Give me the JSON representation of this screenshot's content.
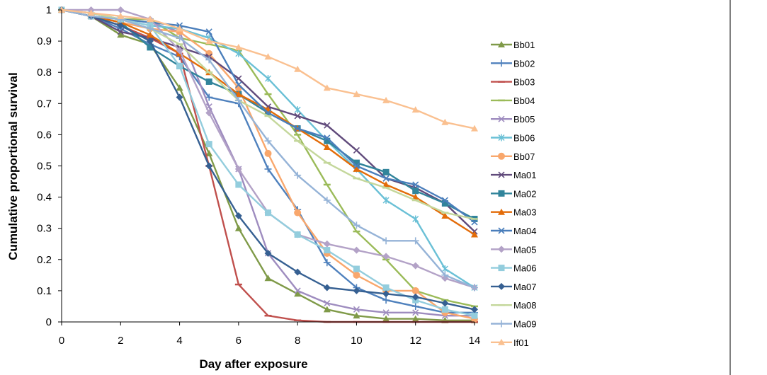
{
  "chart_data": {
    "type": "line",
    "title": "",
    "xlabel": "Day after exposure",
    "ylabel": "Cumulative proportional survival",
    "xlim": [
      0,
      14
    ],
    "ylim": [
      0,
      1
    ],
    "grid": false,
    "legend_position": "right",
    "x_ticks": [
      "0",
      "2",
      "4",
      "6",
      "8",
      "10",
      "12",
      "14"
    ],
    "y_ticks": [
      "0",
      "0.1",
      "0.2",
      "0.3",
      "0.4",
      "0.5",
      "0.6",
      "0.7",
      "0.8",
      "0.9",
      "1"
    ],
    "x": [
      0,
      1,
      2,
      3,
      4,
      5,
      6,
      7,
      8,
      9,
      10,
      11,
      12,
      13,
      14
    ],
    "series": [
      {
        "name": "Bb01",
        "color": "#7f9a48",
        "marker": "triangle",
        "values": [
          1,
          0.98,
          0.92,
          0.89,
          0.75,
          0.54,
          0.3,
          0.14,
          0.09,
          0.04,
          0.02,
          0.01,
          0.01,
          0.005,
          0.005
        ]
      },
      {
        "name": "Bb02",
        "color": "#4f81bd",
        "marker": "plus",
        "values": [
          1,
          0.98,
          0.94,
          0.89,
          0.85,
          0.72,
          0.7,
          0.49,
          0.36,
          0.19,
          0.11,
          0.07,
          0.05,
          0.03,
          0.03
        ]
      },
      {
        "name": "Bb03",
        "color": "#c0504d",
        "marker": "dash",
        "values": [
          1,
          0.98,
          0.95,
          0.91,
          0.86,
          0.5,
          0.12,
          0.02,
          0.005,
          0,
          0,
          0,
          0,
          0,
          0
        ]
      },
      {
        "name": "Bb04",
        "color": "#9bbb59",
        "marker": "dash",
        "values": [
          1,
          0.98,
          0.97,
          0.97,
          0.91,
          0.89,
          0.87,
          0.73,
          0.6,
          0.44,
          0.29,
          0.2,
          0.1,
          0.07,
          0.05
        ]
      },
      {
        "name": "Bb05",
        "color": "#9e8cbf",
        "marker": "x",
        "values": [
          1,
          0.99,
          0.97,
          0.96,
          0.93,
          0.69,
          0.49,
          0.22,
          0.1,
          0.06,
          0.04,
          0.03,
          0.03,
          0.02,
          0.02
        ]
      },
      {
        "name": "Bb06",
        "color": "#6ac0d6",
        "marker": "star",
        "values": [
          1,
          0.99,
          0.97,
          0.95,
          0.94,
          0.91,
          0.86,
          0.78,
          0.68,
          0.58,
          0.49,
          0.39,
          0.33,
          0.17,
          0.11
        ]
      },
      {
        "name": "Bb07",
        "color": "#f9a76c",
        "marker": "circle",
        "values": [
          1,
          0.98,
          0.96,
          0.94,
          0.93,
          0.86,
          0.75,
          0.54,
          0.35,
          0.22,
          0.15,
          0.1,
          0.1,
          0.03,
          0.01
        ]
      },
      {
        "name": "Ma01",
        "color": "#604a7b",
        "marker": "x",
        "values": [
          1,
          0.98,
          0.93,
          0.91,
          0.88,
          0.85,
          0.78,
          0.69,
          0.66,
          0.63,
          0.55,
          0.46,
          0.43,
          0.38,
          0.29
        ]
      },
      {
        "name": "Ma02",
        "color": "#31849b",
        "marker": "square",
        "values": [
          1,
          0.98,
          0.96,
          0.88,
          0.82,
          0.77,
          0.73,
          0.67,
          0.62,
          0.58,
          0.51,
          0.48,
          0.42,
          0.38,
          0.33
        ]
      },
      {
        "name": "Ma03",
        "color": "#e36c09",
        "marker": "triangle",
        "values": [
          1,
          0.98,
          0.96,
          0.92,
          0.86,
          0.8,
          0.73,
          0.68,
          0.62,
          0.56,
          0.49,
          0.44,
          0.4,
          0.34,
          0.28
        ]
      },
      {
        "name": "Ma04",
        "color": "#4a7ebb",
        "marker": "x",
        "values": [
          1,
          0.98,
          0.97,
          0.96,
          0.95,
          0.93,
          0.76,
          0.67,
          0.62,
          0.59,
          0.5,
          0.46,
          0.44,
          0.39,
          0.32
        ]
      },
      {
        "name": "Ma05",
        "color": "#b3a2c7",
        "marker": "diamond",
        "values": [
          1,
          1,
          1,
          0.97,
          0.87,
          0.67,
          0.49,
          0.35,
          0.28,
          0.25,
          0.23,
          0.21,
          0.18,
          0.14,
          0.11
        ]
      },
      {
        "name": "Ma06",
        "color": "#93cddd",
        "marker": "square",
        "values": [
          1,
          0.98,
          0.97,
          0.95,
          0.82,
          0.57,
          0.44,
          0.35,
          0.28,
          0.23,
          0.17,
          0.11,
          0.07,
          0.04,
          0.02
        ]
      },
      {
        "name": "Ma07",
        "color": "#366092",
        "marker": "diamond",
        "values": [
          1,
          0.98,
          0.95,
          0.9,
          0.72,
          0.5,
          0.34,
          0.22,
          0.16,
          0.11,
          0.1,
          0.09,
          0.08,
          0.06,
          0.04
        ]
      },
      {
        "name": "Ma08",
        "color": "#c4d79b",
        "marker": "dash",
        "values": [
          1,
          0.99,
          0.97,
          0.94,
          0.89,
          0.8,
          0.71,
          0.66,
          0.58,
          0.51,
          0.46,
          0.43,
          0.39,
          0.35,
          0.33
        ]
      },
      {
        "name": "Ma09",
        "color": "#95b3d7",
        "marker": "plus",
        "values": [
          1,
          0.98,
          0.97,
          0.94,
          0.91,
          0.84,
          0.71,
          0.58,
          0.47,
          0.39,
          0.31,
          0.26,
          0.26,
          0.15,
          0.11
        ]
      },
      {
        "name": "If01",
        "color": "#fac090",
        "marker": "triangle",
        "values": [
          1,
          0.99,
          0.98,
          0.97,
          0.94,
          0.9,
          0.88,
          0.85,
          0.81,
          0.75,
          0.73,
          0.71,
          0.68,
          0.64,
          0.62
        ]
      }
    ]
  }
}
